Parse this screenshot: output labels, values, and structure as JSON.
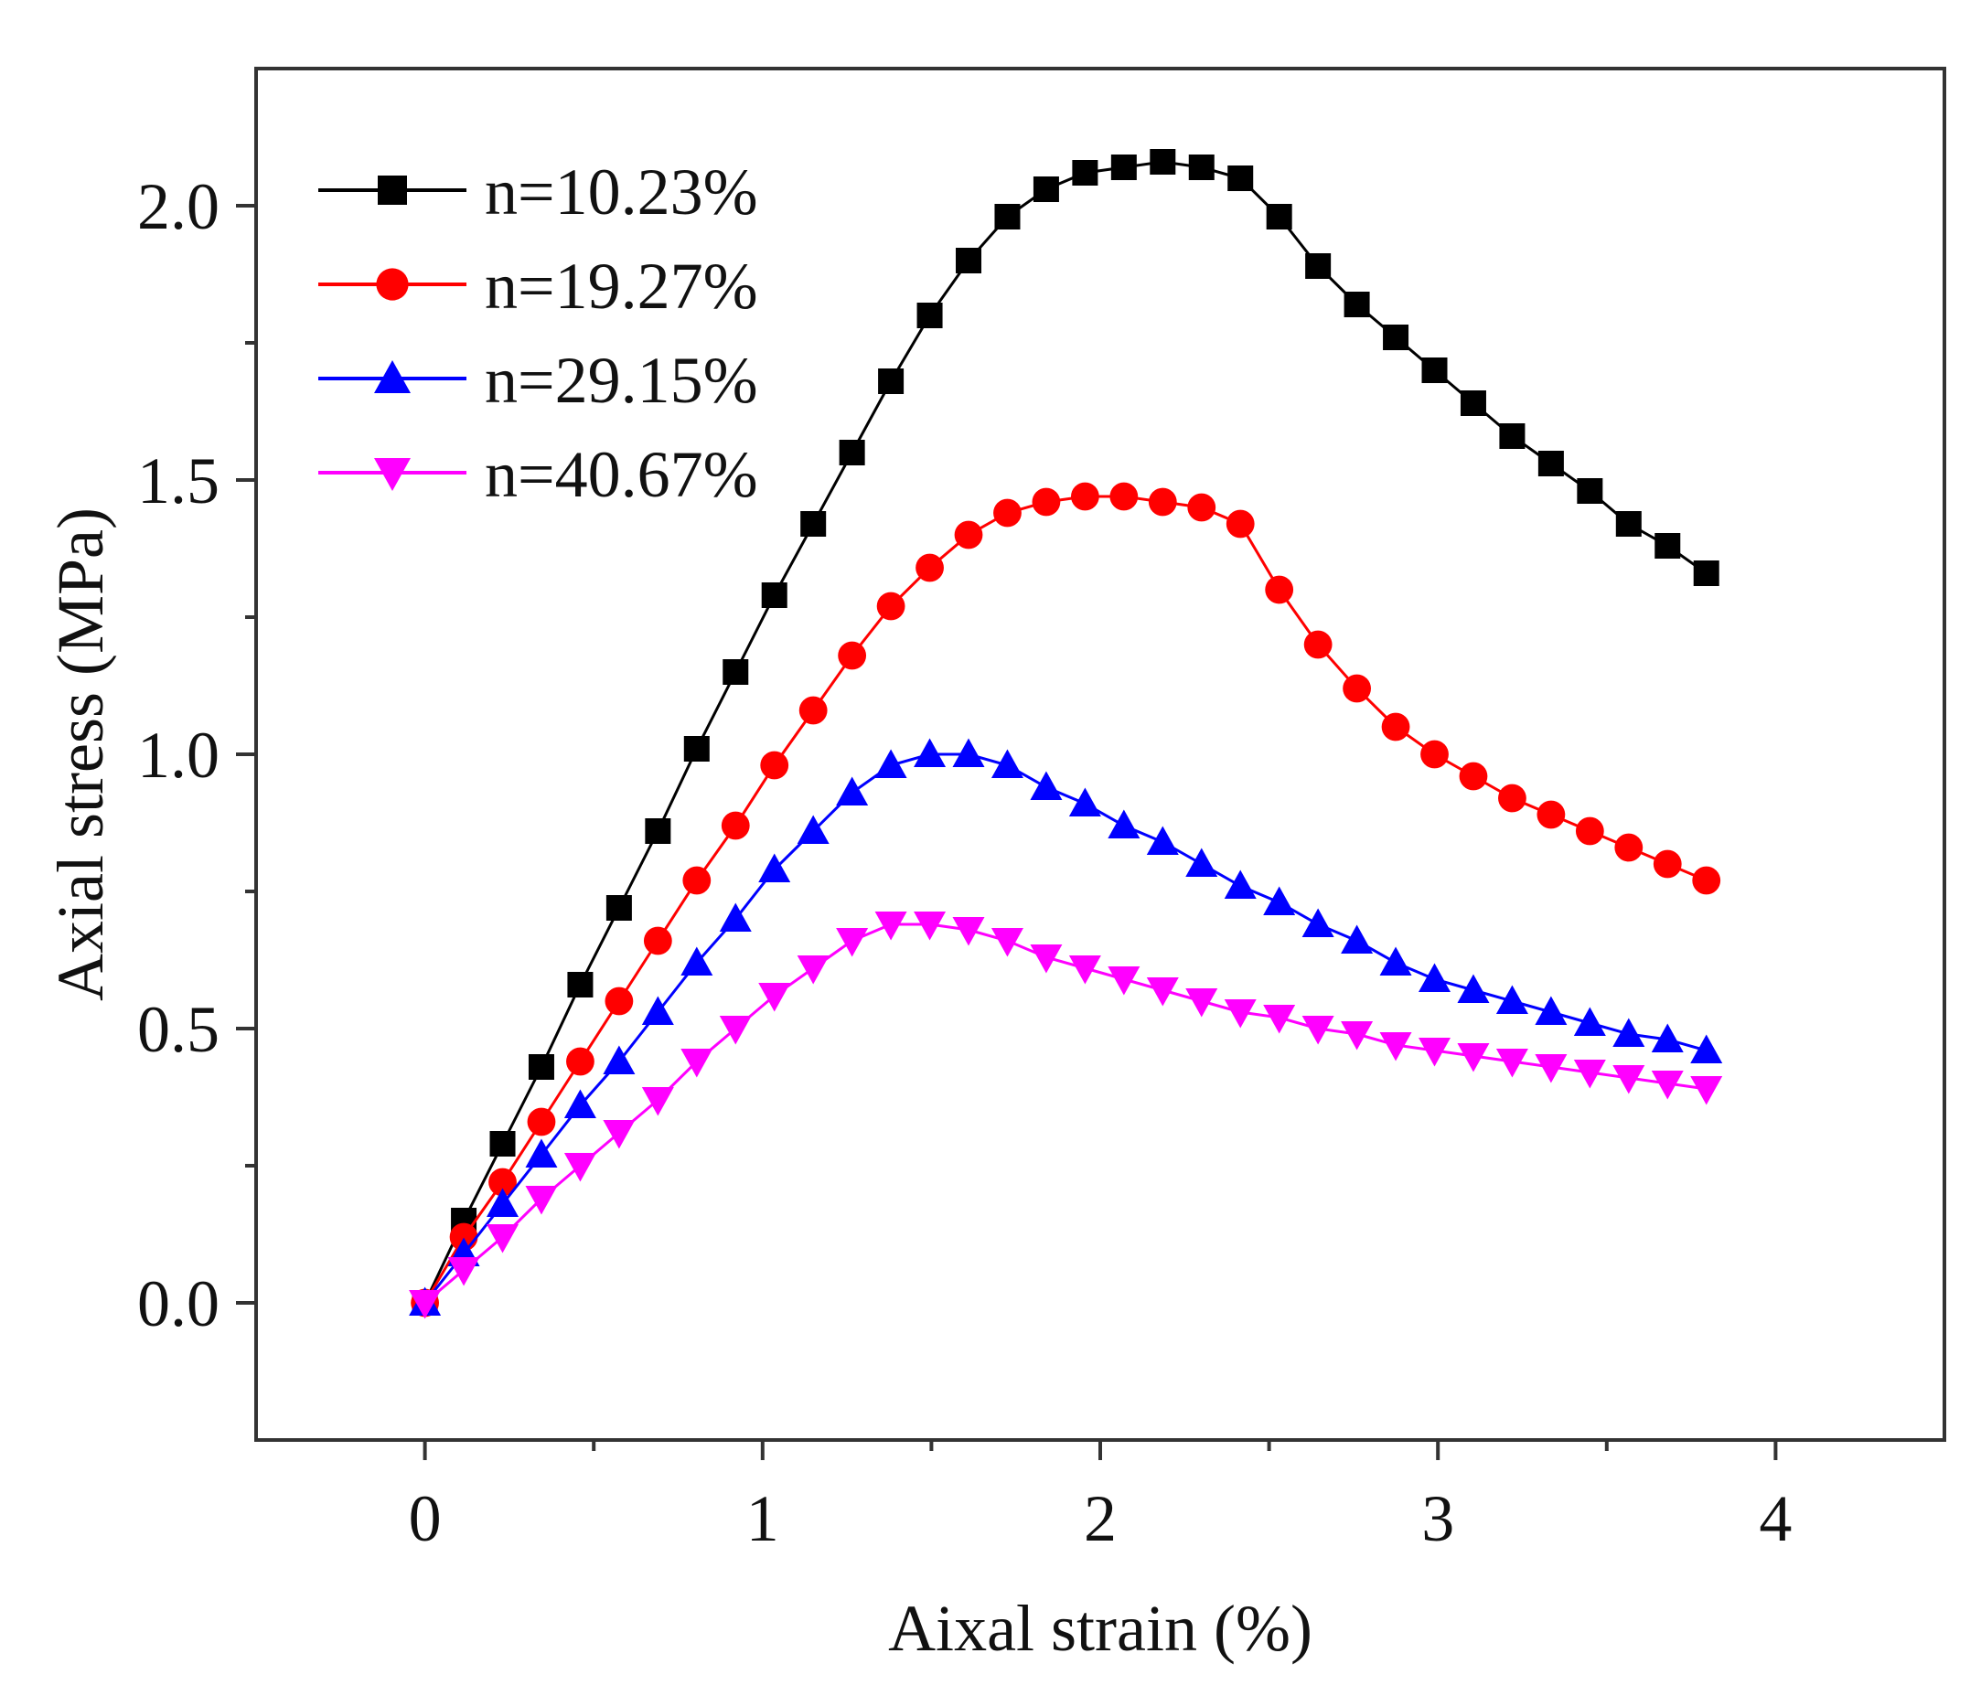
{
  "chart_data": {
    "type": "line",
    "title": "",
    "xlabel": "Aixal strain (%)",
    "ylabel": "Axial stress (MPa)",
    "xlim": [
      -0.5,
      4.5
    ],
    "ylim": [
      -0.25,
      2.25
    ],
    "xticks": [
      0,
      1,
      2,
      3,
      4
    ],
    "xtick_labels": [
      "0",
      "1",
      "2",
      "3",
      "4"
    ],
    "yticks": [
      0.0,
      0.5,
      1.0,
      1.5,
      2.0
    ],
    "ytick_labels": [
      "0.0",
      "0.5",
      "1.0",
      "1.5",
      "2.0"
    ],
    "grid": false,
    "legend_position": "top-left",
    "x": [
      0,
      0.115,
      0.23,
      0.345,
      0.46,
      0.575,
      0.69,
      0.805,
      0.92,
      1.035,
      1.15,
      1.265,
      1.38,
      1.495,
      1.61,
      1.725,
      1.84,
      1.955,
      2.07,
      2.185,
      2.3,
      2.415,
      2.53,
      2.645,
      2.76,
      2.875,
      2.99,
      3.105,
      3.22,
      3.335,
      3.45,
      3.565,
      3.68,
      3.795
    ],
    "series": [
      {
        "name": "n=10.23%",
        "color": "#000000",
        "marker": "square",
        "values": [
          0.0,
          0.15,
          0.29,
          0.43,
          0.58,
          0.72,
          0.86,
          1.01,
          1.15,
          1.29,
          1.42,
          1.55,
          1.68,
          1.8,
          1.9,
          1.98,
          2.03,
          2.06,
          2.07,
          2.08,
          2.07,
          2.05,
          1.98,
          1.89,
          1.82,
          1.76,
          1.7,
          1.64,
          1.58,
          1.53,
          1.48,
          1.42,
          1.38,
          1.33
        ],
        "x": [
          0,
          0.115,
          0.23,
          0.345,
          0.46,
          0.575,
          0.69,
          0.805,
          0.92,
          1.035,
          1.15,
          1.265,
          1.38,
          1.495,
          1.61,
          1.725,
          1.84,
          1.955,
          2.07,
          2.185,
          2.3,
          2.415,
          2.53,
          2.645,
          2.76,
          2.875,
          2.99,
          3.105,
          3.22,
          3.335,
          3.45,
          3.565,
          3.68,
          3.795
        ]
      },
      {
        "name": "n=19.27%",
        "color": "#ff0000",
        "marker": "circle",
        "values": [
          0.0,
          0.12,
          0.22,
          0.33,
          0.44,
          0.55,
          0.66,
          0.77,
          0.87,
          0.98,
          1.08,
          1.18,
          1.27,
          1.34,
          1.4,
          1.44,
          1.46,
          1.47,
          1.47,
          1.46,
          1.45,
          1.42,
          1.3,
          1.2,
          1.12,
          1.05,
          1.0,
          0.96,
          0.92,
          0.89,
          0.86,
          0.83,
          0.8,
          0.77
        ],
        "x": [
          0,
          0.115,
          0.23,
          0.345,
          0.46,
          0.575,
          0.69,
          0.805,
          0.92,
          1.035,
          1.15,
          1.265,
          1.38,
          1.495,
          1.61,
          1.725,
          1.84,
          1.955,
          2.07,
          2.185,
          2.3,
          2.415,
          2.53,
          2.645,
          2.76,
          2.875,
          2.99,
          3.105,
          3.22,
          3.335,
          3.45,
          3.565,
          3.68,
          3.795
        ]
      },
      {
        "name": "n=29.15%",
        "color": "#0000ff",
        "marker": "triangle-up",
        "values": [
          0.0,
          0.09,
          0.18,
          0.27,
          0.36,
          0.44,
          0.53,
          0.62,
          0.7,
          0.79,
          0.86,
          0.93,
          0.98,
          1.0,
          1.0,
          0.98,
          0.94,
          0.91,
          0.87,
          0.84,
          0.8,
          0.76,
          0.73,
          0.69,
          0.66,
          0.62,
          0.59,
          0.57,
          0.55,
          0.53,
          0.51,
          0.49,
          0.48,
          0.46
        ],
        "x": [
          0,
          0.115,
          0.23,
          0.345,
          0.46,
          0.575,
          0.69,
          0.805,
          0.92,
          1.035,
          1.15,
          1.265,
          1.38,
          1.495,
          1.61,
          1.725,
          1.84,
          1.955,
          2.07,
          2.185,
          2.3,
          2.415,
          2.53,
          2.645,
          2.76,
          2.875,
          2.99,
          3.105,
          3.22,
          3.335,
          3.45,
          3.565,
          3.68,
          3.795
        ]
      },
      {
        "name": "n=40.67%",
        "color": "#ff00ff",
        "marker": "triangle-down",
        "values": [
          0.0,
          0.06,
          0.12,
          0.19,
          0.25,
          0.31,
          0.37,
          0.44,
          0.5,
          0.56,
          0.61,
          0.66,
          0.69,
          0.69,
          0.68,
          0.66,
          0.63,
          0.61,
          0.59,
          0.57,
          0.55,
          0.53,
          0.52,
          0.5,
          0.49,
          0.47,
          0.46,
          0.45,
          0.44,
          0.43,
          0.42,
          0.41,
          0.4,
          0.39
        ],
        "x": [
          0,
          0.115,
          0.23,
          0.345,
          0.46,
          0.575,
          0.69,
          0.805,
          0.92,
          1.035,
          1.15,
          1.265,
          1.38,
          1.495,
          1.61,
          1.725,
          1.84,
          1.955,
          2.07,
          2.185,
          2.3,
          2.415,
          2.53,
          2.645,
          2.76,
          2.875,
          2.99,
          3.105,
          3.22,
          3.335,
          3.45,
          3.565,
          3.68,
          3.795
        ]
      }
    ]
  }
}
